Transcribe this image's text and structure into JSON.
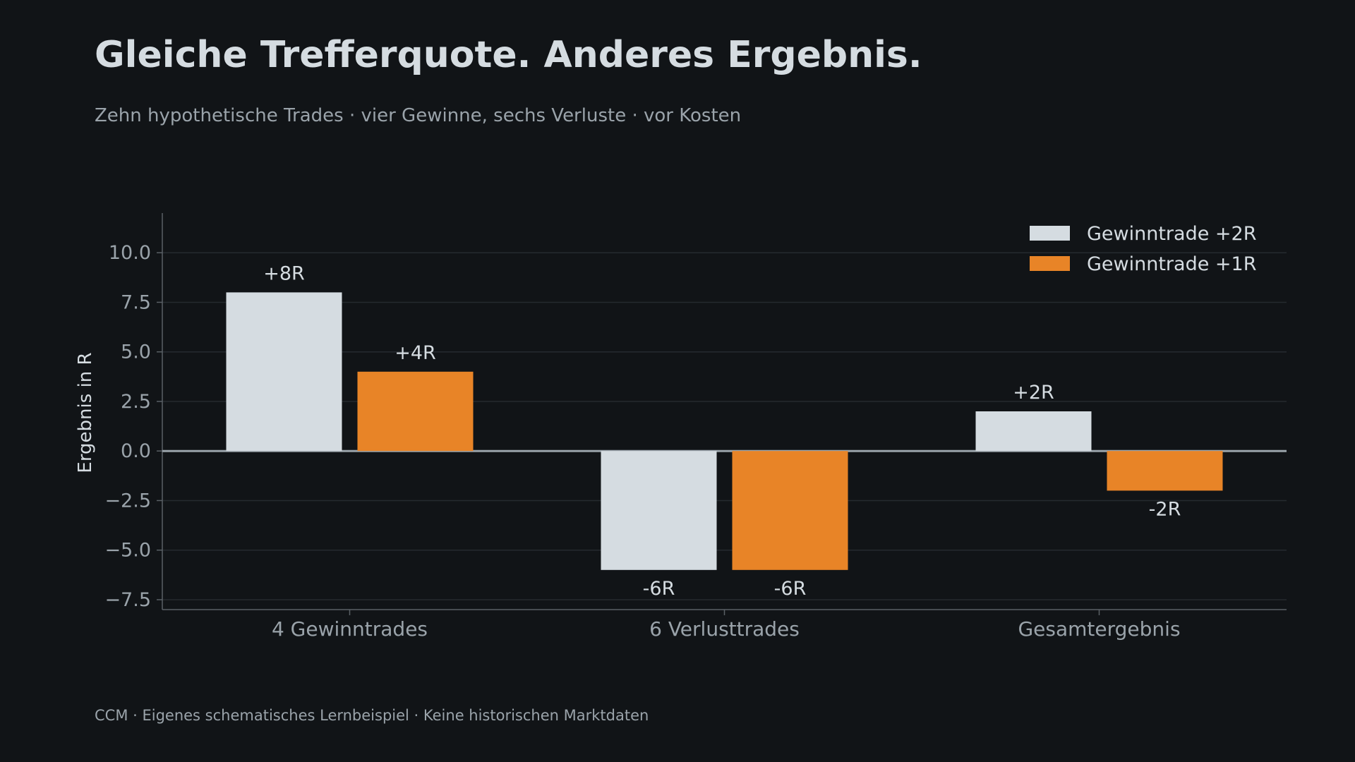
{
  "title": "Gleiche Trefferquote. Anderes Ergebnis.",
  "subtitle": "Zehn hypothetische Trades · vier Gewinne, sechs Verluste · vor Kosten",
  "footer": "CCM · Eigenes schematisches Lernbeispiel · Keine historischen Marktdaten",
  "chart_data": {
    "type": "bar",
    "title": "Gleiche Trefferquote. Anderes Ergebnis.",
    "subtitle": "Zehn hypothetische Trades · vier Gewinne, sechs Verluste · vor Kosten",
    "xlabel": "",
    "ylabel": "Ergebnis in R",
    "categories": [
      "4 Gewinntrades",
      "6 Verlusttrades",
      "Gesamtergebnis"
    ],
    "series": [
      {
        "name": "Gewinntrade +2R",
        "values": [
          8,
          -6,
          2
        ],
        "labels": [
          "+8R",
          "-6R",
          "+2R"
        ],
        "color": "#d5dce1"
      },
      {
        "name": "Gewinntrade +1R",
        "values": [
          4,
          -6,
          -2
        ],
        "labels": [
          "+4R",
          "-6R",
          "-2R"
        ],
        "color": "#e88427"
      }
    ],
    "ylim": [
      -8,
      12
    ],
    "yticks": [
      -7.5,
      -5.0,
      -2.5,
      0.0,
      2.5,
      5.0,
      7.5,
      10.0
    ],
    "ytick_labels": [
      "−7.5",
      "−5.0",
      "−2.5",
      "0.0",
      "2.5",
      "5.0",
      "7.5",
      "10.0"
    ],
    "grid": true,
    "legend_position": "top-right",
    "colors": {
      "background": "#111417",
      "text": "#d5dce1",
      "muted_text": "#9aa3aa",
      "grid": "#252a2f",
      "axis": "#5a6066",
      "zero_line": "#9aa3aa"
    }
  }
}
